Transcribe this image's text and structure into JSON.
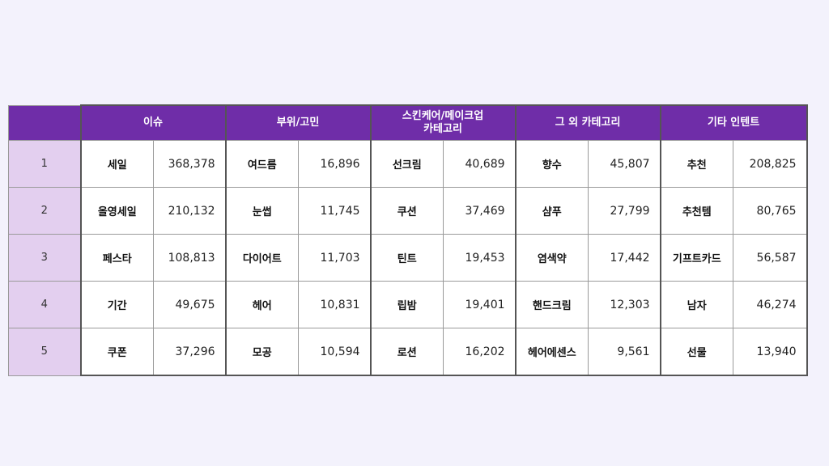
{
  "columns": [
    "이슈",
    "부위/고민",
    "스킨케어/메이크업\n카테고리",
    "그 외 카테고리",
    "기타 인텐트"
  ],
  "rows": [
    {
      "rank": "1",
      "cells": [
        [
          "세일",
          "368,378"
        ],
        [
          "여드름",
          "16,896"
        ],
        [
          "선크림",
          "40,689"
        ],
        [
          "향수",
          "45,807"
        ],
        [
          "추천",
          "208,825"
        ]
      ]
    },
    {
      "rank": "2",
      "cells": [
        [
          "올영세일",
          "210,132"
        ],
        [
          "눈썹",
          "11,745"
        ],
        [
          "쿠션",
          "37,469"
        ],
        [
          "샴푸",
          "27,799"
        ],
        [
          "추천템",
          "80,765"
        ]
      ]
    },
    {
      "rank": "3",
      "cells": [
        [
          "페스타",
          "108,813"
        ],
        [
          "다이어트",
          "11,703"
        ],
        [
          "틴트",
          "19,453"
        ],
        [
          "염색약",
          "17,442"
        ],
        [
          "기프트카드",
          "56,587"
        ]
      ]
    },
    {
      "rank": "4",
      "cells": [
        [
          "기간",
          "49,675"
        ],
        [
          "헤어",
          "10,831"
        ],
        [
          "립밤",
          "19,401"
        ],
        [
          "핸드크림",
          "12,303"
        ],
        [
          "남자",
          "46,274"
        ]
      ]
    },
    {
      "rank": "5",
      "cells": [
        [
          "쿠폰",
          "37,296"
        ],
        [
          "모공",
          "10,594"
        ],
        [
          "로션",
          "16,202"
        ],
        [
          "헤어에센스",
          "9,561"
        ],
        [
          "선물",
          "13,940"
        ]
      ]
    }
  ],
  "colors": {
    "header_bg": "#6f2da8",
    "rank_bg": "#e3cfef",
    "page_bg": "#f3f2fc"
  }
}
